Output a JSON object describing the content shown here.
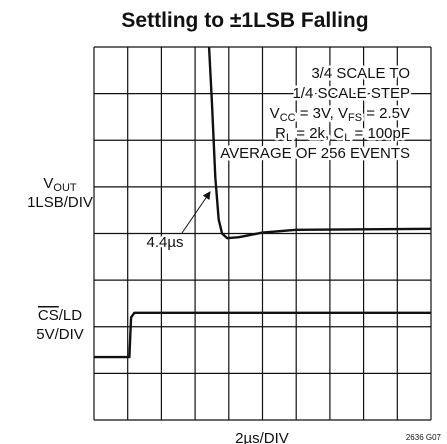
{
  "chart_data": {
    "type": "line",
    "title": "Settling to ±1LSB Falling",
    "annotation": [
      [
        "3/4 SCALE TO"
      ],
      [
        "1/4 SCALE STEP"
      ],
      [
        "V",
        "CC",
        " = 3V, V",
        "FS",
        " = 2.5V"
      ],
      [
        "R",
        "L",
        " = 2k, C",
        "L",
        " = 100pF"
      ],
      [
        "AVERAGE OF 256 EVENTS"
      ]
    ],
    "arrow_label": "4.4µs",
    "ylabel_top": [
      [
        "V",
        "OUT"
      ],
      [
        "1LSB/DIV"
      ]
    ],
    "ylabel_bottom": [
      [
        "CS",
        "/LD"
      ],
      [
        "5V/DIV"
      ]
    ],
    "xlabel": "2µs/DIV",
    "figure_id": "2636 G07",
    "xlim": [
      0,
      10
    ],
    "ylim": [
      0,
      8
    ],
    "grid": true,
    "series": [
      {
        "color": "#111111",
        "x": [
          3.4,
          3.5,
          3.6,
          3.7,
          3.8,
          3.95,
          4.3,
          5,
          6,
          10
        ],
        "values": [
          8.2,
          6.8,
          5.2,
          4.3,
          4.0,
          3.9,
          3.92,
          4.02,
          4.08,
          4.1
        ]
      },
      {
        "color": "#111111",
        "x": [
          0,
          1.05,
          1.1,
          1.2,
          10
        ],
        "values": [
          1.35,
          1.35,
          2.2,
          2.3,
          2.3
        ]
      }
    ]
  }
}
